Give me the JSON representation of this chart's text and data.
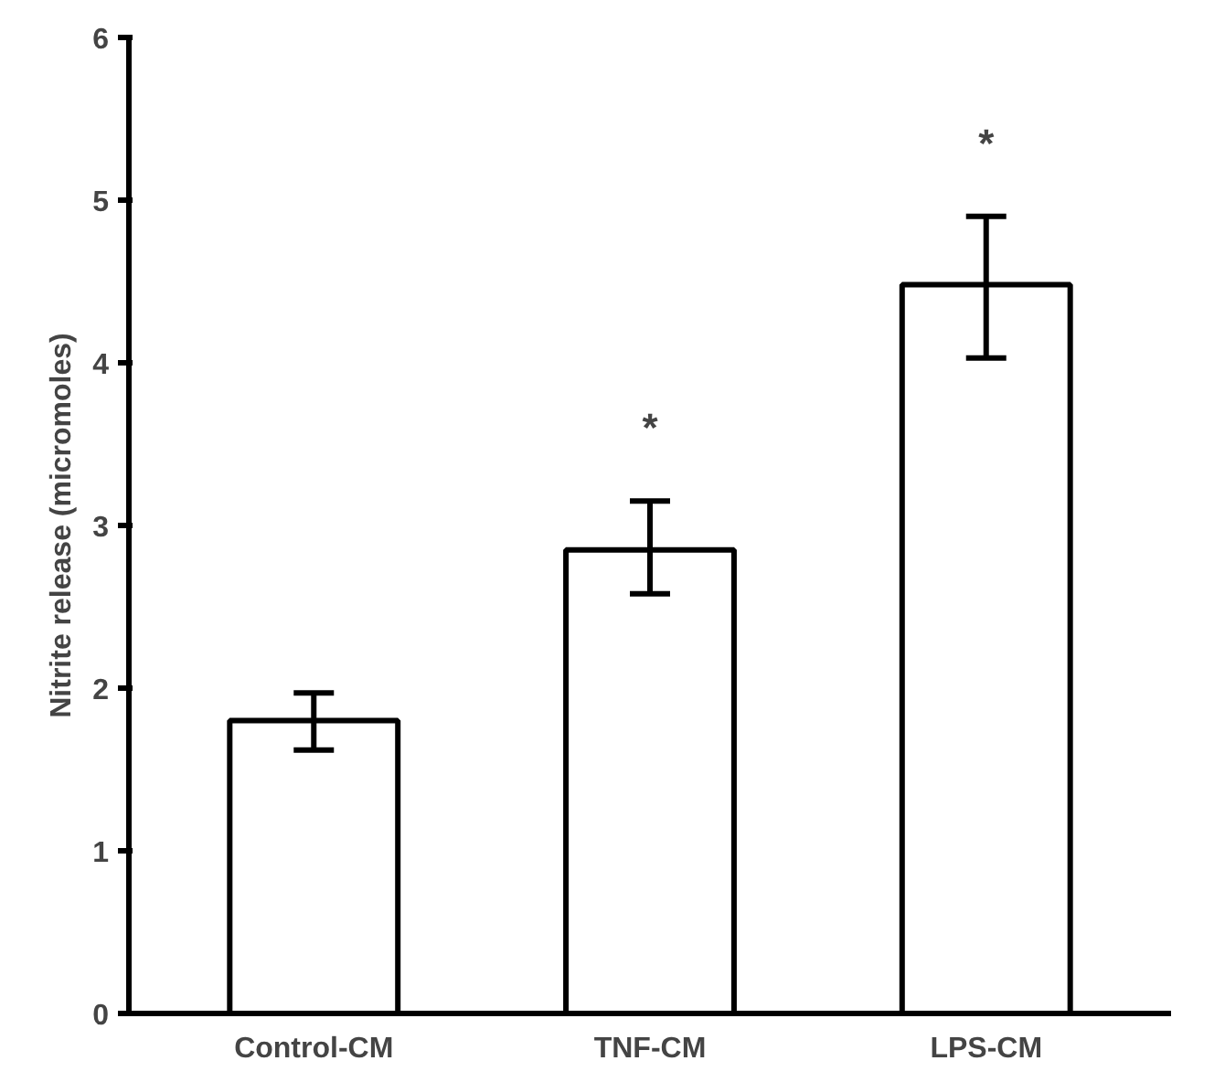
{
  "chart_data": {
    "type": "bar",
    "ylabel": "Nitrite release (micromoles)",
    "categories": [
      "Control-CM",
      "TNF-CM",
      "LPS-CM"
    ],
    "values": [
      1.8,
      2.85,
      4.48
    ],
    "errors": [
      [
        1.62,
        1.97
      ],
      [
        2.58,
        3.15
      ],
      [
        4.03,
        4.9
      ]
    ],
    "color": "#ffffff",
    "ylim": [
      0,
      6
    ],
    "yticks": [
      0,
      1,
      2,
      3,
      4,
      5,
      6
    ],
    "grid": false,
    "annotations": [
      "*",
      "*"
    ]
  }
}
